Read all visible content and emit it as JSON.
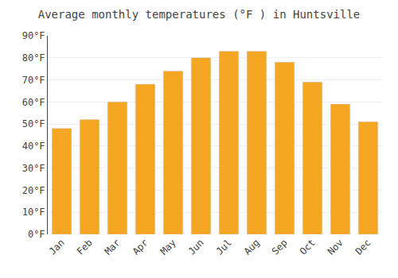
{
  "chart_data": {
    "type": "bar",
    "title": "Average monthly temperatures (°F ) in Huntsville",
    "categories": [
      "Jan",
      "Feb",
      "Mar",
      "Apr",
      "May",
      "Jun",
      "Jul",
      "Aug",
      "Sep",
      "Oct",
      "Nov",
      "Dec"
    ],
    "values": [
      48,
      52,
      60,
      68,
      74,
      80,
      83,
      83,
      78,
      69,
      59,
      51
    ],
    "color": "#F5A623",
    "ylim": [
      0,
      90
    ],
    "yticks": [
      {
        "value": 0,
        "label": "0°F"
      },
      {
        "value": 10,
        "label": "10°F"
      },
      {
        "value": 20,
        "label": "20°F"
      },
      {
        "value": 30,
        "label": "30°F"
      },
      {
        "value": 40,
        "label": "40°F"
      },
      {
        "value": 50,
        "label": "50°F"
      },
      {
        "value": 60,
        "label": "60°F"
      },
      {
        "value": 70,
        "label": "70°F"
      },
      {
        "value": 80,
        "label": "80°F"
      },
      {
        "value": 90,
        "label": "90°F"
      }
    ],
    "grid": true
  }
}
